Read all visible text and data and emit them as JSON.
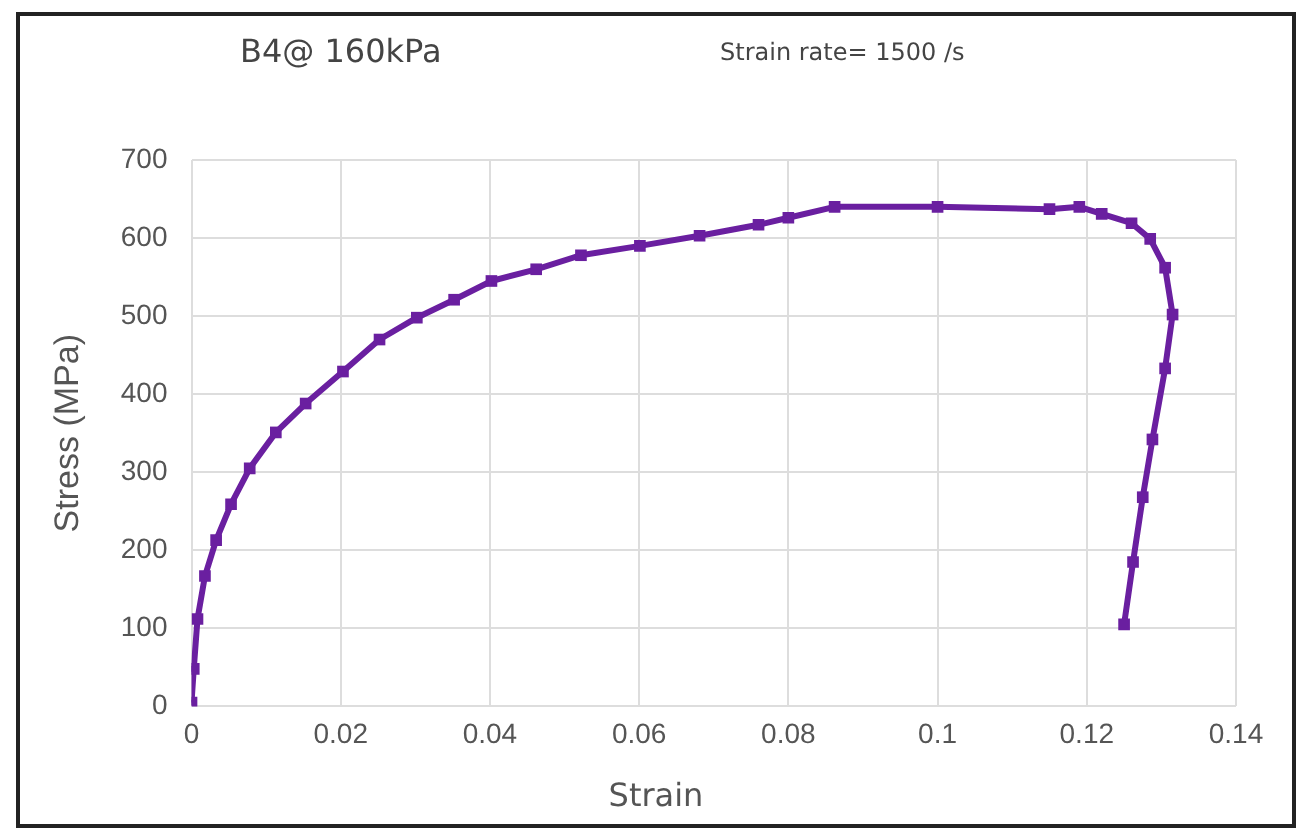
{
  "chart_data": {
    "type": "line",
    "title": "B4@ 160kPa",
    "subtitle": "Strain rate= 1500 /s",
    "xlabel": "Strain",
    "ylabel": "Stress (MPa)",
    "xlim": [
      0,
      0.14
    ],
    "xticks": [
      0,
      0.02,
      0.04,
      0.06,
      0.08,
      0.1,
      0.12,
      0.14
    ],
    "ylim": [
      0,
      700
    ],
    "yticks": [
      0,
      100,
      200,
      300,
      400,
      500,
      600,
      700
    ],
    "grid": true,
    "legend": false,
    "marker": "square",
    "line_style": "solid",
    "series": [
      {
        "color": "#6a1fa0",
        "x": [
          0,
          0.0003,
          0.0008,
          0.0018,
          0.0033,
          0.0053,
          0.0078,
          0.0113,
          0.0153,
          0.0203,
          0.0252,
          0.0302,
          0.0352,
          0.0402,
          0.0462,
          0.0522,
          0.0601,
          0.0681,
          0.076,
          0.08,
          0.0862,
          0.1,
          0.115,
          0.119,
          0.122,
          0.126,
          0.1285,
          0.1305,
          0.1315,
          0.1305,
          0.1288,
          0.1275,
          0.1262,
          0.125
        ],
        "values": [
          5,
          48,
          112,
          167,
          213,
          259,
          305,
          351,
          388,
          429,
          470,
          498,
          521,
          545,
          560,
          578,
          590,
          603,
          617,
          626,
          640,
          640,
          637,
          640,
          631,
          619,
          599,
          562,
          502,
          433,
          342,
          268,
          185,
          105
        ]
      }
    ]
  }
}
